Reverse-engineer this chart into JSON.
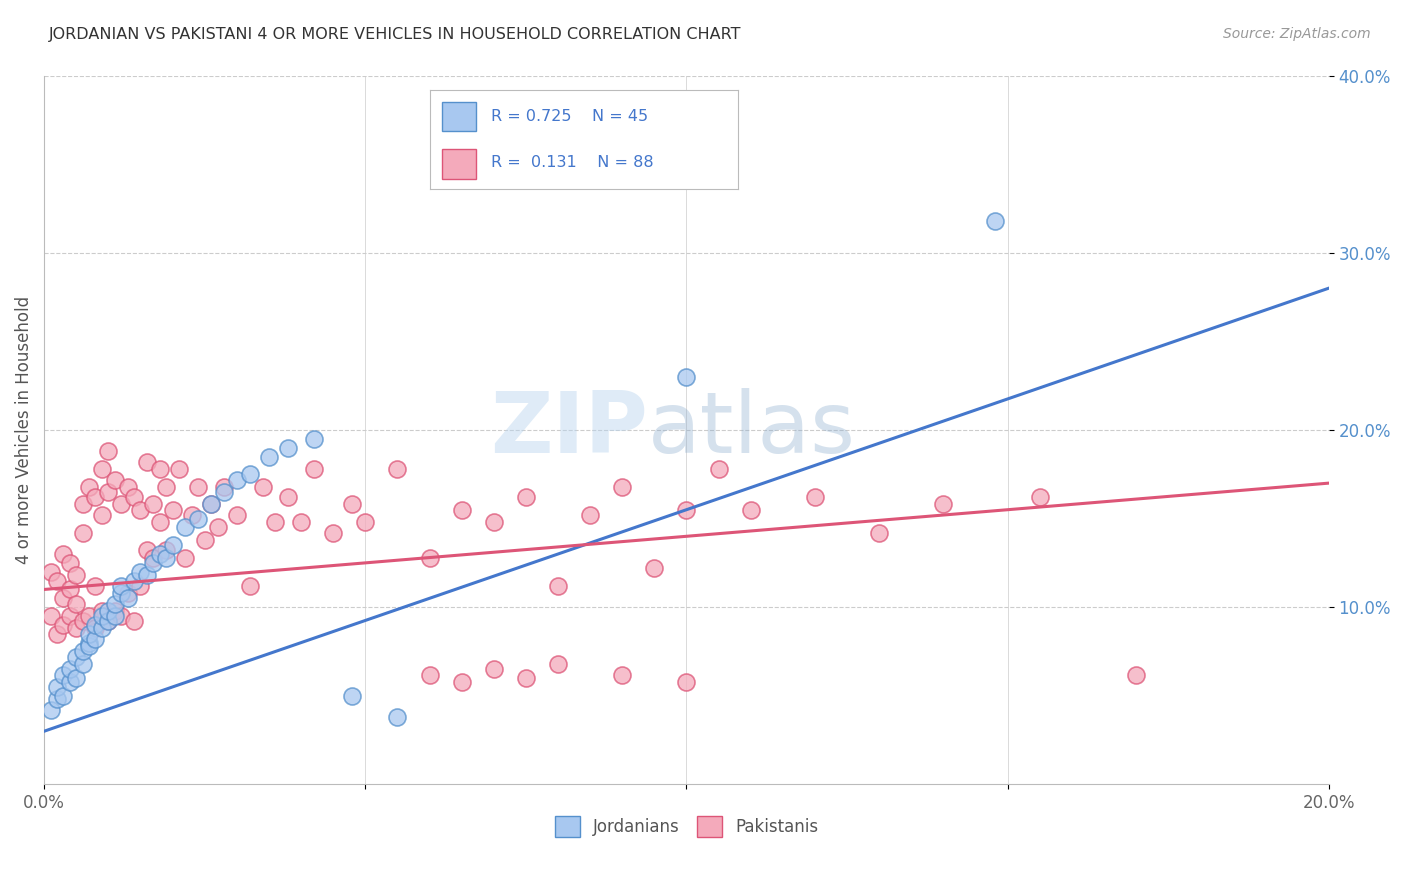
{
  "title": "JORDANIAN VS PAKISTANI 4 OR MORE VEHICLES IN HOUSEHOLD CORRELATION CHART",
  "source": "Source: ZipAtlas.com",
  "ylabel": "4 or more Vehicles in Household",
  "xlim": [
    0.0,
    0.2
  ],
  "ylim": [
    0.0,
    0.4
  ],
  "xtick_values": [
    0.0,
    0.05,
    0.1,
    0.15,
    0.2
  ],
  "xtick_labels": [
    "0.0%",
    "",
    "",
    "",
    "20.0%"
  ],
  "ytick_values": [
    0.1,
    0.2,
    0.3,
    0.4
  ],
  "ytick_labels": [
    "10.0%",
    "20.0%",
    "30.0%",
    "40.0%"
  ],
  "jordanian_color": "#A8C8F0",
  "pakistani_color": "#F4AABB",
  "jordanian_edge_color": "#5590CC",
  "pakistani_edge_color": "#DD5577",
  "jordanian_line_color": "#4477CC",
  "pakistani_line_color": "#DD5577",
  "tick_color": "#5590CC",
  "background_color": "#FFFFFF",
  "watermark_zip": "ZIP",
  "watermark_atlas": "atlas",
  "R_jordanian": 0.725,
  "N_jordanian": 45,
  "R_pakistani": 0.131,
  "N_pakistani": 88,
  "jordanian_x": [
    0.001,
    0.002,
    0.002,
    0.003,
    0.003,
    0.004,
    0.004,
    0.005,
    0.005,
    0.006,
    0.006,
    0.007,
    0.007,
    0.007,
    0.008,
    0.008,
    0.009,
    0.009,
    0.01,
    0.01,
    0.011,
    0.011,
    0.012,
    0.012,
    0.013,
    0.014,
    0.015,
    0.016,
    0.017,
    0.018,
    0.019,
    0.02,
    0.022,
    0.024,
    0.026,
    0.028,
    0.03,
    0.032,
    0.035,
    0.038,
    0.042,
    0.048,
    0.055,
    0.1,
    0.148
  ],
  "jordanian_y": [
    0.042,
    0.048,
    0.055,
    0.062,
    0.05,
    0.058,
    0.065,
    0.06,
    0.072,
    0.068,
    0.075,
    0.08,
    0.078,
    0.085,
    0.082,
    0.09,
    0.088,
    0.095,
    0.092,
    0.098,
    0.095,
    0.102,
    0.108,
    0.112,
    0.105,
    0.115,
    0.12,
    0.118,
    0.125,
    0.13,
    0.128,
    0.135,
    0.145,
    0.15,
    0.158,
    0.165,
    0.172,
    0.175,
    0.185,
    0.19,
    0.195,
    0.05,
    0.038,
    0.23,
    0.318
  ],
  "pakistani_x": [
    0.001,
    0.001,
    0.002,
    0.002,
    0.003,
    0.003,
    0.003,
    0.004,
    0.004,
    0.004,
    0.005,
    0.005,
    0.005,
    0.006,
    0.006,
    0.006,
    0.007,
    0.007,
    0.008,
    0.008,
    0.008,
    0.009,
    0.009,
    0.009,
    0.01,
    0.01,
    0.01,
    0.011,
    0.011,
    0.012,
    0.012,
    0.013,
    0.013,
    0.014,
    0.014,
    0.015,
    0.015,
    0.016,
    0.016,
    0.017,
    0.017,
    0.018,
    0.018,
    0.019,
    0.019,
    0.02,
    0.021,
    0.022,
    0.023,
    0.024,
    0.025,
    0.026,
    0.027,
    0.028,
    0.03,
    0.032,
    0.034,
    0.036,
    0.038,
    0.04,
    0.042,
    0.045,
    0.048,
    0.05,
    0.055,
    0.06,
    0.065,
    0.07,
    0.075,
    0.08,
    0.085,
    0.09,
    0.095,
    0.1,
    0.105,
    0.11,
    0.12,
    0.13,
    0.14,
    0.155,
    0.06,
    0.065,
    0.07,
    0.075,
    0.08,
    0.09,
    0.1,
    0.17
  ],
  "pakistani_y": [
    0.095,
    0.12,
    0.085,
    0.115,
    0.09,
    0.105,
    0.13,
    0.11,
    0.095,
    0.125,
    0.088,
    0.102,
    0.118,
    0.092,
    0.142,
    0.158,
    0.095,
    0.168,
    0.088,
    0.112,
    0.162,
    0.098,
    0.152,
    0.178,
    0.092,
    0.165,
    0.188,
    0.098,
    0.172,
    0.095,
    0.158,
    0.108,
    0.168,
    0.092,
    0.162,
    0.112,
    0.155,
    0.182,
    0.132,
    0.158,
    0.128,
    0.148,
    0.178,
    0.132,
    0.168,
    0.155,
    0.178,
    0.128,
    0.152,
    0.168,
    0.138,
    0.158,
    0.145,
    0.168,
    0.152,
    0.112,
    0.168,
    0.148,
    0.162,
    0.148,
    0.178,
    0.142,
    0.158,
    0.148,
    0.178,
    0.128,
    0.155,
    0.148,
    0.162,
    0.112,
    0.152,
    0.168,
    0.122,
    0.155,
    0.178,
    0.155,
    0.162,
    0.142,
    0.158,
    0.162,
    0.062,
    0.058,
    0.065,
    0.06,
    0.068,
    0.062,
    0.058,
    0.062
  ]
}
